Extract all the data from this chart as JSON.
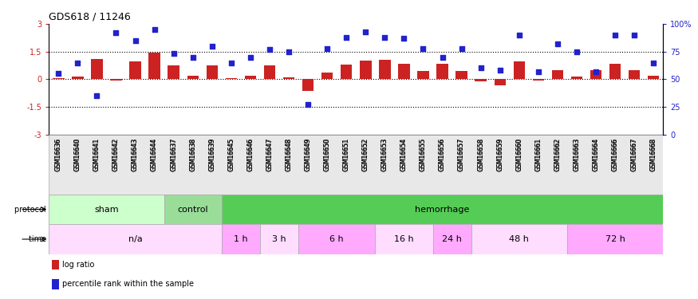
{
  "title": "GDS618 / 11246",
  "samples": [
    "GSM16636",
    "GSM16640",
    "GSM16641",
    "GSM16642",
    "GSM16643",
    "GSM16644",
    "GSM16637",
    "GSM16638",
    "GSM16639",
    "GSM16645",
    "GSM16646",
    "GSM16647",
    "GSM16648",
    "GSM16649",
    "GSM16650",
    "GSM16651",
    "GSM16652",
    "GSM16653",
    "GSM16654",
    "GSM16655",
    "GSM16656",
    "GSM16657",
    "GSM16658",
    "GSM16659",
    "GSM16660",
    "GSM16661",
    "GSM16662",
    "GSM16663",
    "GSM16664",
    "GSM16666",
    "GSM16667",
    "GSM16668"
  ],
  "log_ratio": [
    0.05,
    0.15,
    1.1,
    -0.05,
    0.95,
    1.45,
    0.75,
    0.2,
    0.75,
    0.05,
    0.2,
    0.75,
    0.1,
    -0.65,
    0.35,
    0.8,
    1.0,
    1.05,
    0.85,
    0.45,
    0.85,
    0.45,
    -0.1,
    -0.35,
    0.95,
    -0.05,
    0.5,
    0.15,
    0.5,
    0.85,
    0.5,
    0.2
  ],
  "percentile": [
    55,
    65,
    35,
    92,
    85,
    95,
    73,
    70,
    80,
    65,
    70,
    77,
    75,
    27,
    78,
    88,
    93,
    88,
    87,
    78,
    70,
    78,
    60,
    58,
    90,
    57,
    82,
    75,
    57,
    90,
    90,
    65
  ],
  "protocol_groups": [
    {
      "label": "sham",
      "start": 0,
      "end": 6,
      "color": "#ccffcc"
    },
    {
      "label": "control",
      "start": 6,
      "end": 9,
      "color": "#99dd99"
    },
    {
      "label": "hemorrhage",
      "start": 9,
      "end": 32,
      "color": "#55cc55"
    }
  ],
  "time_groups": [
    {
      "label": "n/a",
      "start": 0,
      "end": 9,
      "color": "#ffddff"
    },
    {
      "label": "1 h",
      "start": 9,
      "end": 11,
      "color": "#ffaaff"
    },
    {
      "label": "3 h",
      "start": 11,
      "end": 13,
      "color": "#ffddff"
    },
    {
      "label": "6 h",
      "start": 13,
      "end": 17,
      "color": "#ffaaff"
    },
    {
      "label": "16 h",
      "start": 17,
      "end": 20,
      "color": "#ffddff"
    },
    {
      "label": "24 h",
      "start": 20,
      "end": 22,
      "color": "#ffaaff"
    },
    {
      "label": "48 h",
      "start": 22,
      "end": 27,
      "color": "#ffddff"
    },
    {
      "label": "72 h",
      "start": 27,
      "end": 32,
      "color": "#ffaaff"
    }
  ],
  "bar_color": "#cc2222",
  "dot_color": "#2222cc",
  "ylim_left": [
    -3,
    3
  ],
  "ylim_right": [
    0,
    100
  ],
  "hline_values": [
    1.5,
    0.0,
    -1.5
  ],
  "left_ticks": [
    -3,
    -1.5,
    0,
    1.5,
    3
  ],
  "left_tick_labels": [
    "-3",
    "-1.5",
    "0",
    "1.5",
    "3"
  ],
  "right_ticks": [
    0,
    25,
    50,
    75,
    100
  ],
  "right_tick_labels": [
    "0",
    "25",
    "50",
    "75",
    "100%"
  ]
}
